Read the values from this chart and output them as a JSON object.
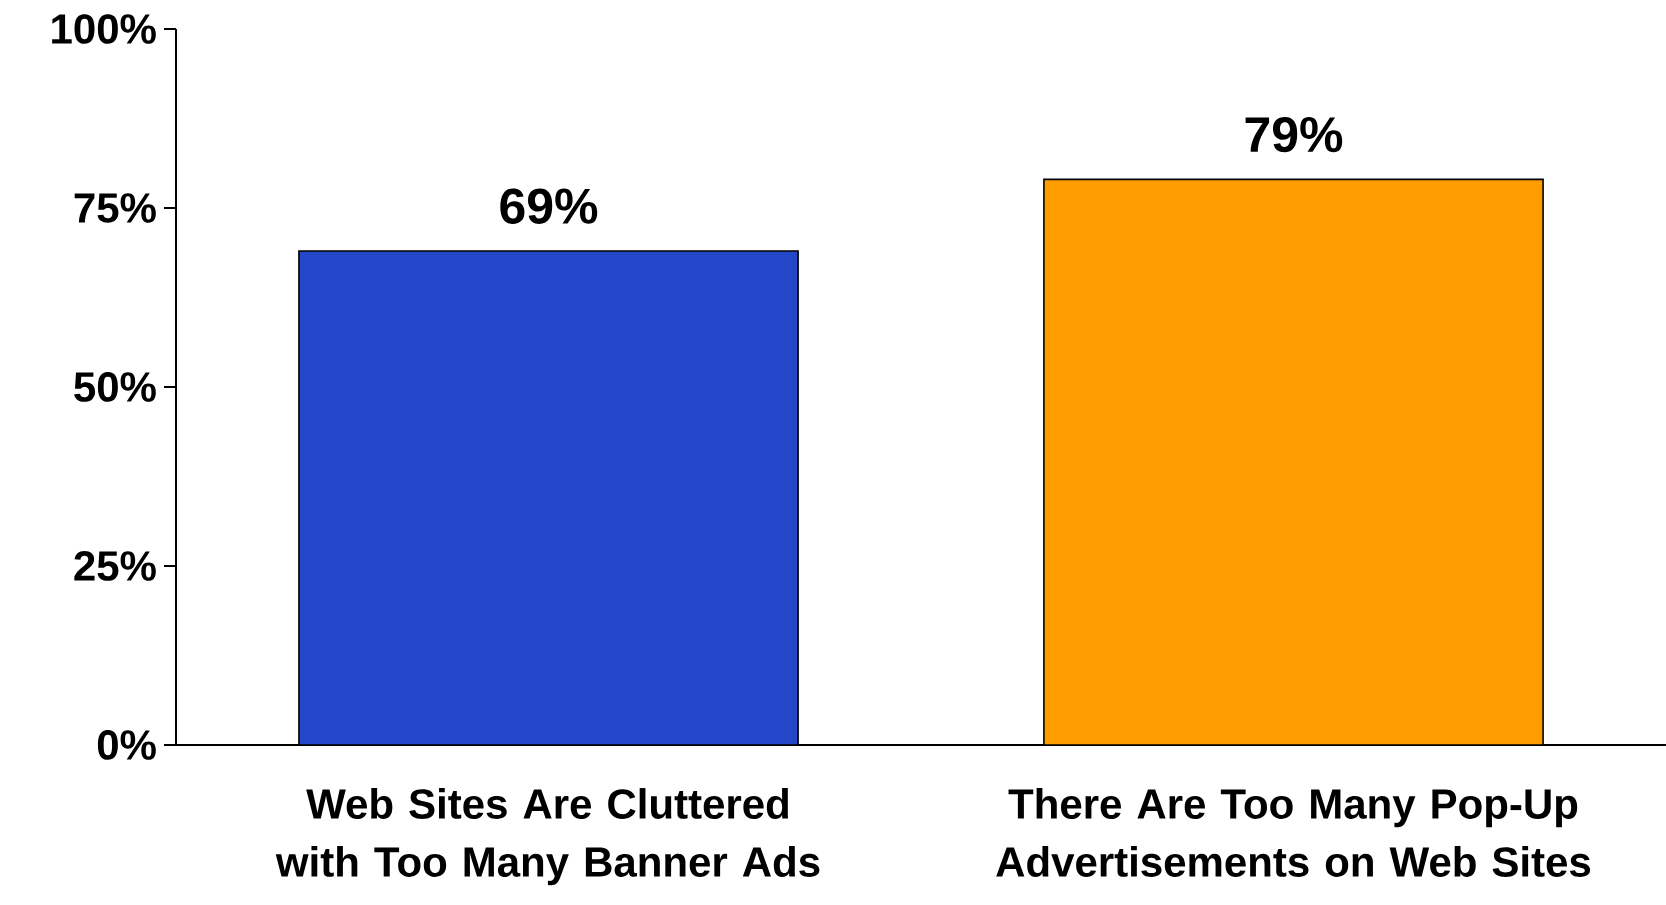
{
  "chart_data": {
    "type": "bar",
    "categories": [
      "Web Sites Are Cluttered with Too Many Banner Ads",
      "There Are Too Many Pop-Up Advertisements on Web Sites"
    ],
    "values": [
      69,
      79
    ],
    "colors": [
      "#2446c8",
      "#ff9c00"
    ],
    "value_labels": [
      "69%",
      "79%"
    ],
    "ylim": [
      0,
      100
    ],
    "yticks": [
      {
        "value": 0,
        "label": "0%"
      },
      {
        "value": 25,
        "label": "25%"
      },
      {
        "value": 50,
        "label": "50%"
      },
      {
        "value": 75,
        "label": "75%"
      },
      {
        "value": 100,
        "label": "100%"
      }
    ]
  }
}
